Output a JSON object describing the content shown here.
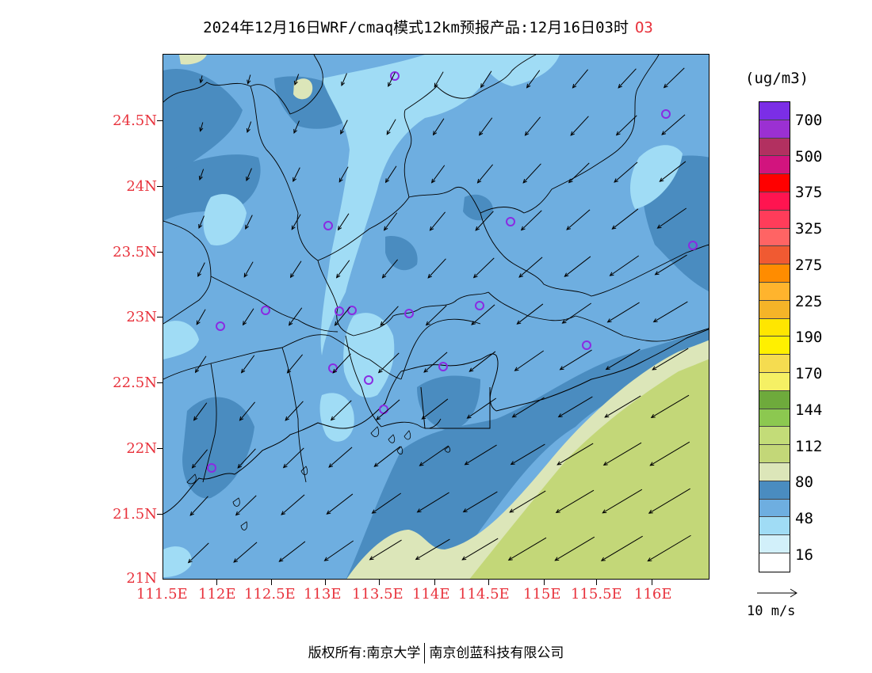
{
  "title": {
    "text": "2024年12月16日WRF/cmaq模式12km预报产品:12月16日03时",
    "species": "O3"
  },
  "axes": {
    "lat_labels": [
      "24.5N",
      "24N",
      "23.5N",
      "23N",
      "22.5N",
      "22N",
      "21.5N",
      "21N"
    ],
    "lon_labels": [
      "111.5E",
      "112E",
      "112.5E",
      "113E",
      "113.5E",
      "114E",
      "114.5E",
      "115E",
      "115.5E",
      "116E"
    ]
  },
  "legend": {
    "unit": "(ug/m3)",
    "colors": [
      "#7b2ee6",
      "#9b30d2",
      "#b23060",
      "#d2147e",
      "#ff0000",
      "#ff1450",
      "#ff3c5a",
      "#ff6464",
      "#f05a32",
      "#ff8c00",
      "#ffb42d",
      "#f5b428",
      "#ffe600",
      "#fff000",
      "#f5dc50",
      "#f5f064",
      "#6eaa3c",
      "#8cc850",
      "#c3dc78",
      "#c3d778",
      "#dce6b9",
      "#4a8cc0",
      "#6eaee0",
      "#a0dcf5",
      "#d2f0fa",
      "#ffffff"
    ],
    "labels": [
      "700",
      "500",
      "375",
      "325",
      "275",
      "225",
      "190",
      "170",
      "144",
      "112",
      "80",
      "48",
      "16"
    ]
  },
  "wind_reference": {
    "label": "10 m/s"
  },
  "stations_color": "#8a2be2",
  "copyright": {
    "left": "版权所有:南京大学",
    "right": "南京创蓝科技有限公司"
  }
}
